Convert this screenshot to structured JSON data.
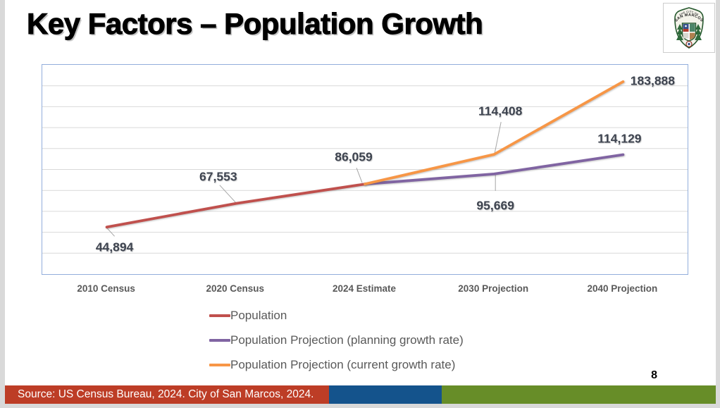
{
  "slide": {
    "title": "Key Factors – Population Growth",
    "page_number": "8",
    "logo": {
      "semantic": "city-of-san-marcos-seal",
      "top_text": "THE CITY OF",
      "name_text": "SAN MARCOS"
    }
  },
  "chart_data": {
    "type": "line",
    "title": "",
    "categories": [
      "2010 Census",
      "2020 Census",
      "2024 Estimate",
      "2030 Projection",
      "2040 Projection"
    ],
    "series": [
      {
        "name": "Population",
        "color": "#C0504D",
        "x_indices": [
          0,
          1,
          2
        ],
        "values": [
          44894,
          67553,
          86059
        ]
      },
      {
        "name": "Population Projection (planning growth rate)",
        "color": "#8064A2",
        "x_indices": [
          2,
          3,
          4
        ],
        "values": [
          86059,
          95669,
          114129
        ]
      },
      {
        "name": "Population Projection (current growth rate)",
        "color": "#F79646",
        "x_indices": [
          2,
          3,
          4
        ],
        "values": [
          86059,
          114408,
          183888
        ]
      }
    ],
    "data_labels": [
      {
        "text": "44,894",
        "value": 44894,
        "x_index": 0,
        "series": "Population"
      },
      {
        "text": "67,553",
        "value": 67553,
        "x_index": 1,
        "series": "Population"
      },
      {
        "text": "86,059",
        "value": 86059,
        "x_index": 2,
        "series": "Population"
      },
      {
        "text": "95,669",
        "value": 95669,
        "x_index": 3,
        "series": "Population Projection (planning growth rate)"
      },
      {
        "text": "114,408",
        "value": 114408,
        "x_index": 3,
        "series": "Population Projection (current growth rate)"
      },
      {
        "text": "114,129",
        "value": 114129,
        "x_index": 4,
        "series": "Population Projection (planning growth rate)"
      },
      {
        "text": "183,888",
        "value": 183888,
        "x_index": 4,
        "series": "Population Projection (current growth rate)"
      }
    ],
    "ylim": [
      0,
      200000
    ],
    "gridlines": {
      "step": 20000,
      "color": "#D9D9D9",
      "visible": true
    },
    "y_axis_labels_visible": false,
    "legend_position": "bottom-left",
    "plot_border_color": "#92AEDC",
    "leader_line_color": "#A6A6A6"
  },
  "footer": {
    "source_text": "Source: US Census Bureau, 2024. City of San Marcos, 2024.",
    "segments": [
      {
        "name": "source-red",
        "color": "#BD3D26"
      },
      {
        "name": "band-blue",
        "color": "#14538C"
      },
      {
        "name": "band-green",
        "color": "#678D28"
      }
    ]
  }
}
